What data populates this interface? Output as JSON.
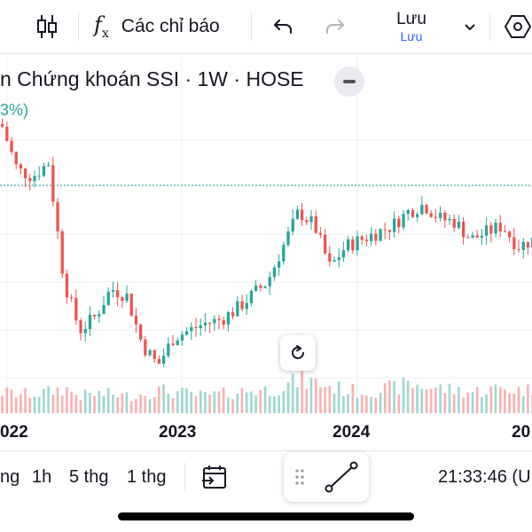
{
  "toolbar": {
    "indicators_label": "Các chỉ báo",
    "save_label": "Lưu",
    "save_sub_label": "Lưu",
    "icons": [
      "candle-icon",
      "function-icon",
      "undo-icon",
      "redo-icon",
      "chevron-down-icon",
      "settings-hex-icon"
    ]
  },
  "legend": {
    "title": "n Chứng khoán SSI · 1W · HOSE",
    "change": "3%)"
  },
  "x_axis": {
    "years": [
      "022",
      "2023",
      "2024",
      "20"
    ]
  },
  "bottom_bar": {
    "intervals": [
      "ng",
      "1h",
      "5 thg",
      "1 thg"
    ],
    "time": "21:33:46 (U"
  },
  "colors": {
    "up": "#26a69a",
    "down": "#ef5350",
    "accent": "#2962ff",
    "grid": "#eef0f3"
  },
  "chart_data": {
    "type": "candlestick",
    "interval": "1W",
    "x": [
      "2021-12",
      "2022-01",
      "2022-02",
      "2022-03",
      "2022-04",
      "2022-05",
      "2022-06",
      "2022-07",
      "2022-08",
      "2022-09",
      "2022-10",
      "2022-11",
      "2022-12",
      "2023-01",
      "2023-02",
      "2023-03",
      "2023-04",
      "2023-05",
      "2023-06",
      "2023-07",
      "2023-08",
      "2023-09",
      "2023-10",
      "2023-11",
      "2023-12",
      "2024-01",
      "2024-02",
      "2024-03",
      "2024-04",
      "2024-05",
      "2024-06",
      "2024-07",
      "2024-08",
      "2024-09",
      "2024-10"
    ],
    "close": [
      50.5,
      44,
      43,
      45,
      28,
      21,
      23,
      27,
      26,
      19,
      16,
      20,
      21,
      22,
      22.5,
      24,
      26,
      28,
      33,
      38,
      36,
      30,
      33,
      34,
      35,
      36,
      38,
      39,
      37,
      36.5,
      34,
      35,
      36,
      33,
      34
    ],
    "volume": [
      0.55,
      0.5,
      0.5,
      0.55,
      0.65,
      0.45,
      0.5,
      0.5,
      0.45,
      0.5,
      0.6,
      0.55,
      0.5,
      0.45,
      0.5,
      0.55,
      0.6,
      0.6,
      0.7,
      0.85,
      0.8,
      0.7,
      0.6,
      0.55,
      0.6,
      0.65,
      0.75,
      0.7,
      0.65,
      0.6,
      0.55,
      0.6,
      0.65,
      0.6,
      0.6
    ],
    "x_ticks": [
      "022",
      "2023",
      "2024",
      "20"
    ]
  }
}
